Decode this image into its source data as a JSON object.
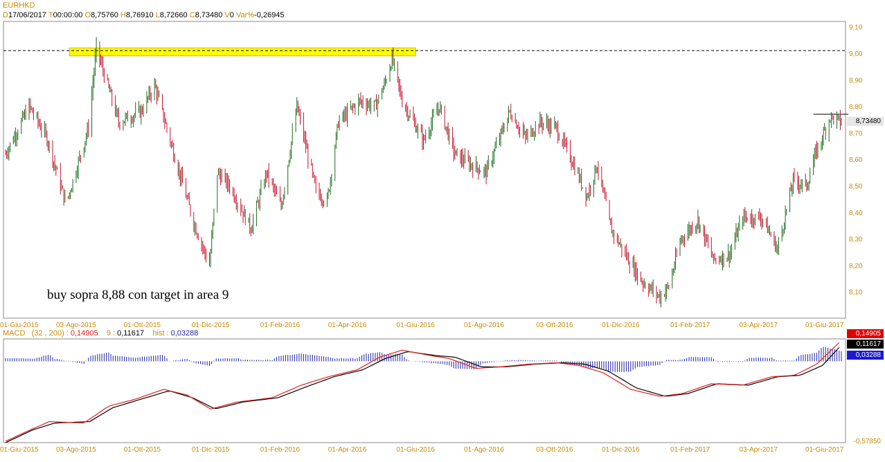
{
  "header": {
    "symbol": "EURHKD",
    "date_key": "D",
    "date": "17/06/2017",
    "time_key": "T",
    "time": "00:00:00",
    "open_key": "O",
    "open": "8,75760",
    "high_key": "H",
    "high": "8,76910",
    "low_key": "L",
    "low": "8,72660",
    "close_key": "C",
    "close": "8,73480",
    "vol_key": "V",
    "vol": "0",
    "var_key": "Var%",
    "var": "-0,26945"
  },
  "macd_header": {
    "name": "MACD",
    "params": "(32 , 200)",
    "macd_value": "0,14905",
    "signal_key": "9",
    "signal_value": "0,11617",
    "hist_key": "hist",
    "hist_value": "0,03288"
  },
  "badges": {
    "last_price": "8,73480",
    "macd": "0,14905",
    "signal": "0,11617",
    "hist": "0,03288",
    "macd_min": "-0,57850"
  },
  "colors": {
    "up": "#1a6b1a",
    "down": "#c8102e",
    "macd_line": "#e02020",
    "signal_line": "#000000",
    "histogram": "#2020a0",
    "highlight": "#ffff00",
    "axis_text": "#c98a00"
  },
  "chart_data": [
    {
      "type": "candlestick",
      "title": "EURHKD",
      "annotation": "buy sopra 8,88 con target in area 9",
      "ylim": [
        8.0,
        9.12
      ],
      "y_ticks": [
        "9,10",
        "9,00",
        "8,90",
        "8,80",
        "8,70",
        "8,60",
        "8,50",
        "8,40",
        "8,30",
        "8,20",
        "8,10"
      ],
      "y_tick_values": [
        9.1,
        9.0,
        8.9,
        8.8,
        8.7,
        8.6,
        8.5,
        8.4,
        8.3,
        8.2,
        8.1
      ],
      "x_ticks": [
        "01-Giu-2015",
        "03-Ago-2015",
        "01-Ott-2015",
        "01-Dic-2015",
        "01-Feb-2016",
        "01-Apr-2016",
        "01-Giu-2016",
        "01-Ago-2016",
        "03-Ott-2016",
        "01-Dic-2016",
        "01-Feb-2017",
        "03-Apr-2017",
        "01-Giu-2017"
      ],
      "reference_levels": {
        "dashed_line": 9.01,
        "resistance_segment": 8.77
      },
      "highlight_band": {
        "from": 8.99,
        "to": 9.02,
        "x_from": "2015-07-28",
        "x_to": "2016-06-01"
      },
      "price_anchors": [
        [
          "2015-06-01",
          8.62
        ],
        [
          "2015-06-22",
          8.8
        ],
        [
          "2015-07-08",
          8.68
        ],
        [
          "2015-07-25",
          8.43
        ],
        [
          "2015-08-14",
          8.72
        ],
        [
          "2015-08-21",
          9.02
        ],
        [
          "2015-09-10",
          8.74
        ],
        [
          "2015-09-30",
          8.78
        ],
        [
          "2015-10-12",
          8.88
        ],
        [
          "2015-10-26",
          8.67
        ],
        [
          "2015-11-16",
          8.36
        ],
        [
          "2015-11-30",
          8.2
        ],
        [
          "2015-12-07",
          8.55
        ],
        [
          "2015-12-18",
          8.5
        ],
        [
          "2016-01-06",
          8.34
        ],
        [
          "2016-01-20",
          8.55
        ],
        [
          "2016-02-02",
          8.42
        ],
        [
          "2016-02-16",
          8.8
        ],
        [
          "2016-03-04",
          8.48
        ],
        [
          "2016-03-14",
          8.44
        ],
        [
          "2016-03-24",
          8.74
        ],
        [
          "2016-04-12",
          8.82
        ],
        [
          "2016-04-26",
          8.8
        ],
        [
          "2016-05-04",
          8.88
        ],
        [
          "2016-05-11",
          8.98
        ],
        [
          "2016-05-20",
          8.82
        ],
        [
          "2016-06-08",
          8.67
        ],
        [
          "2016-06-22",
          8.8
        ],
        [
          "2016-07-06",
          8.62
        ],
        [
          "2016-07-20",
          8.58
        ],
        [
          "2016-08-03",
          8.55
        ],
        [
          "2016-08-24",
          8.78
        ],
        [
          "2016-09-07",
          8.68
        ],
        [
          "2016-09-20",
          8.74
        ],
        [
          "2016-10-04",
          8.72
        ],
        [
          "2016-10-18",
          8.6
        ],
        [
          "2016-11-01",
          8.46
        ],
        [
          "2016-11-10",
          8.58
        ],
        [
          "2016-11-22",
          8.34
        ],
        [
          "2016-12-08",
          8.22
        ],
        [
          "2016-12-20",
          8.14
        ],
        [
          "2017-01-05",
          8.08
        ],
        [
          "2017-01-13",
          8.12
        ],
        [
          "2017-01-24",
          8.3
        ],
        [
          "2017-02-08",
          8.37
        ],
        [
          "2017-02-22",
          8.22
        ],
        [
          "2017-03-08",
          8.24
        ],
        [
          "2017-03-20",
          8.38
        ],
        [
          "2017-04-06",
          8.38
        ],
        [
          "2017-04-20",
          8.26
        ],
        [
          "2017-05-04",
          8.52
        ],
        [
          "2017-05-16",
          8.5
        ],
        [
          "2017-05-24",
          8.62
        ],
        [
          "2017-06-06",
          8.76
        ],
        [
          "2017-06-16",
          8.74
        ]
      ]
    },
    {
      "type": "macd",
      "title": "MACD",
      "series": [
        {
          "name": "MACD",
          "params": "(32 , 200)"
        },
        {
          "name": "9"
        },
        {
          "name": "hist"
        }
      ],
      "ylim": [
        -0.58,
        0.16
      ],
      "y_ticks": [
        "-0,57850"
      ],
      "x_ticks": [
        "01-Giu-2015",
        "03-Ago-2015",
        "01-Ott-2015",
        "01-Dic-2015",
        "01-Feb-2016",
        "01-Apr-2016",
        "01-Giu-2016",
        "01-Ago-2016",
        "03-Ott-2016",
        "01-Dic-2016",
        "01-Feb-2017",
        "03-Apr-2017",
        "01-Giu-2017"
      ],
      "macd_anchors": [
        [
          "2015-06-01",
          -0.57
        ],
        [
          "2015-06-20",
          -0.5
        ],
        [
          "2015-07-10",
          -0.43
        ],
        [
          "2015-08-10",
          -0.44
        ],
        [
          "2015-09-01",
          -0.32
        ],
        [
          "2015-09-25",
          -0.27
        ],
        [
          "2015-10-20",
          -0.2
        ],
        [
          "2015-11-10",
          -0.24
        ],
        [
          "2015-12-01",
          -0.34
        ],
        [
          "2015-12-25",
          -0.29
        ],
        [
          "2016-01-25",
          -0.26
        ],
        [
          "2016-02-20",
          -0.17
        ],
        [
          "2016-03-15",
          -0.11
        ],
        [
          "2016-04-10",
          -0.06
        ],
        [
          "2016-04-30",
          0.03
        ],
        [
          "2016-05-20",
          0.08
        ],
        [
          "2016-06-15",
          0.04
        ],
        [
          "2016-07-01",
          0.02
        ],
        [
          "2016-07-25",
          -0.05
        ],
        [
          "2016-08-15",
          -0.04
        ],
        [
          "2016-09-10",
          -0.02
        ],
        [
          "2016-10-05",
          -0.01
        ],
        [
          "2016-10-25",
          -0.03
        ],
        [
          "2016-11-15",
          -0.08
        ],
        [
          "2016-12-10",
          -0.2
        ],
        [
          "2017-01-05",
          -0.25
        ],
        [
          "2017-01-25",
          -0.23
        ],
        [
          "2017-02-20",
          -0.16
        ],
        [
          "2017-03-20",
          -0.17
        ],
        [
          "2017-04-15",
          -0.11
        ],
        [
          "2017-05-05",
          -0.1
        ],
        [
          "2017-05-25",
          -0.02
        ],
        [
          "2017-06-16",
          0.149
        ]
      ],
      "signal_anchors": [
        [
          "2015-06-01",
          -0.58
        ],
        [
          "2015-06-25",
          -0.49
        ],
        [
          "2015-07-15",
          -0.44
        ],
        [
          "2015-08-15",
          -0.43
        ],
        [
          "2015-09-05",
          -0.33
        ],
        [
          "2015-09-30",
          -0.27
        ],
        [
          "2015-10-25",
          -0.21
        ],
        [
          "2015-11-15",
          -0.26
        ],
        [
          "2015-12-05",
          -0.34
        ],
        [
          "2015-12-30",
          -0.29
        ],
        [
          "2016-01-30",
          -0.26
        ],
        [
          "2016-02-25",
          -0.18
        ],
        [
          "2016-03-20",
          -0.11
        ],
        [
          "2016-04-15",
          -0.06
        ],
        [
          "2016-05-05",
          0.02
        ],
        [
          "2016-05-25",
          0.07
        ],
        [
          "2016-06-20",
          0.04
        ],
        [
          "2016-07-06",
          0.03
        ],
        [
          "2016-07-30",
          -0.04
        ],
        [
          "2016-08-20",
          -0.04
        ],
        [
          "2016-09-15",
          -0.02
        ],
        [
          "2016-10-10",
          -0.01
        ],
        [
          "2016-10-30",
          -0.02
        ],
        [
          "2016-11-20",
          -0.07
        ],
        [
          "2016-12-15",
          -0.19
        ],
        [
          "2017-01-10",
          -0.25
        ],
        [
          "2017-01-30",
          -0.23
        ],
        [
          "2017-02-25",
          -0.16
        ],
        [
          "2017-03-25",
          -0.17
        ],
        [
          "2017-04-20",
          -0.11
        ],
        [
          "2017-05-10",
          -0.1
        ],
        [
          "2017-05-30",
          -0.03
        ],
        [
          "2017-06-16",
          0.116
        ]
      ]
    }
  ]
}
